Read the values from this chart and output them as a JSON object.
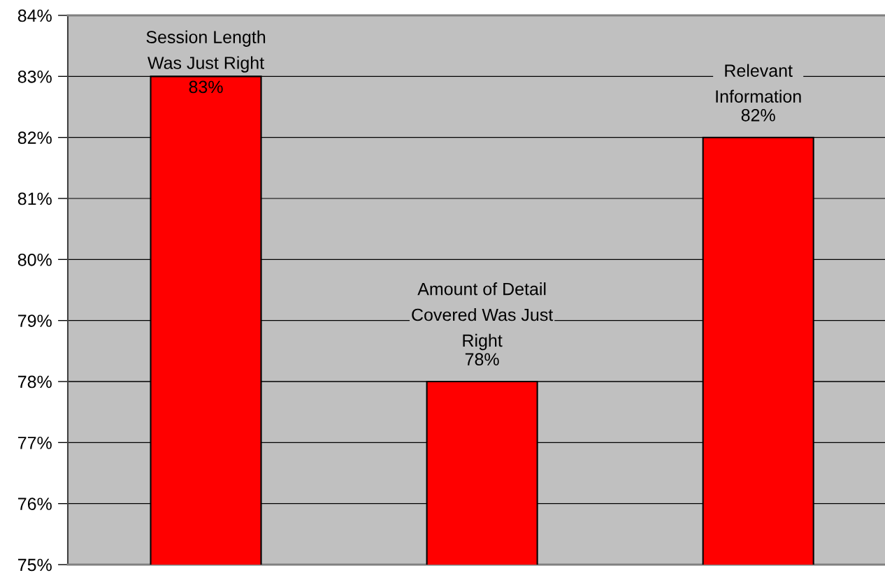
{
  "chart_data": {
    "type": "bar",
    "categories": [
      "Session Length\nWas Just Right",
      "Amount of Detail\nCovered Was Just\nRight",
      "Relevant\nInformation"
    ],
    "values": [
      83,
      78,
      82
    ],
    "color": "#ff0000",
    "value_labels": [
      "83%",
      "78%",
      "82%"
    ],
    "ylim": [
      75,
      84
    ],
    "yticks": [
      {
        "value": 75,
        "label": "75%"
      },
      {
        "value": 76,
        "label": "76%"
      },
      {
        "value": 77,
        "label": "77%"
      },
      {
        "value": 78,
        "label": "78%"
      },
      {
        "value": 79,
        "label": "79%"
      },
      {
        "value": 80,
        "label": "80%"
      },
      {
        "value": 81,
        "label": "81%"
      },
      {
        "value": 82,
        "label": "82%"
      },
      {
        "value": 83,
        "label": "83%"
      },
      {
        "value": 84,
        "label": "84%"
      }
    ],
    "grid": "y",
    "tick_labels": "y"
  }
}
